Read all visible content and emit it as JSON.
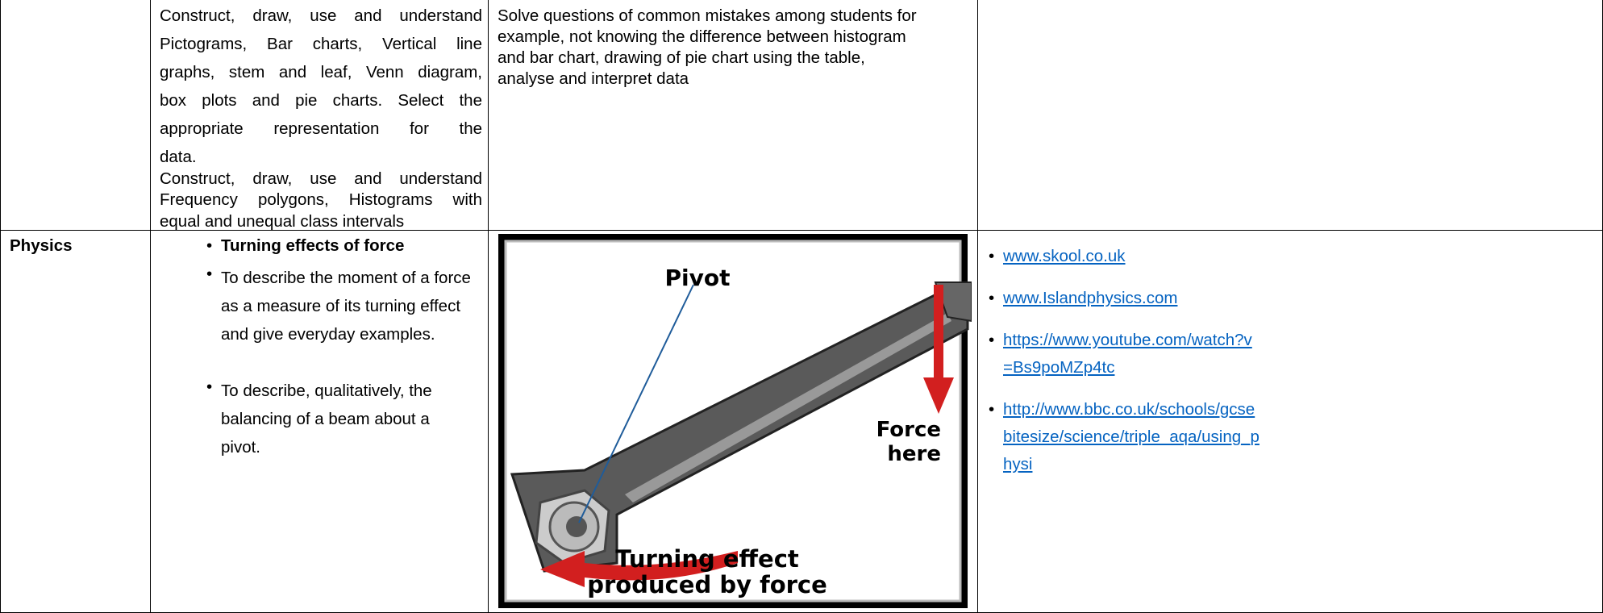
{
  "row1": {
    "skills": [
      [
        "Construct, draw, use and understand",
        "Pictograms, Bar charts, Vertical line",
        "graphs, stem and leaf, Venn diagram,",
        "box plots and pie charts. Select the",
        "appropriate representation for the",
        "data."
      ],
      [
        "Construct, draw, use and understand",
        "Frequency polygons, Histograms with",
        "equal and unequal class intervals"
      ]
    ],
    "activity": [
      "Solve questions of common mistakes among students for",
      "example, not knowing the difference between histogram",
      "and bar chart, drawing of pie chart using the table,",
      "analyse and interpret data"
    ]
  },
  "row2": {
    "subject": "Physics",
    "heading": "Turning effects of force",
    "objectives": [
      "To describe the moment of a force as a measure of its turning effect and give everyday examples.",
      "To describe, qualitatively, the balancing of a beam about a pivot."
    ],
    "diagram": {
      "pivot": "Pivot",
      "force": [
        "Force",
        "here"
      ],
      "effect": [
        "Turning effect",
        "produced by force"
      ]
    },
    "resources": [
      "www.skool.co.uk",
      "www.Islandphysics.com",
      "https://www.youtube.com/watch?v=Bs9poMZp4tc",
      "http://www.bbc.co.uk/schools/gcsebitesize/science/triple_aqa/using_physi"
    ]
  }
}
